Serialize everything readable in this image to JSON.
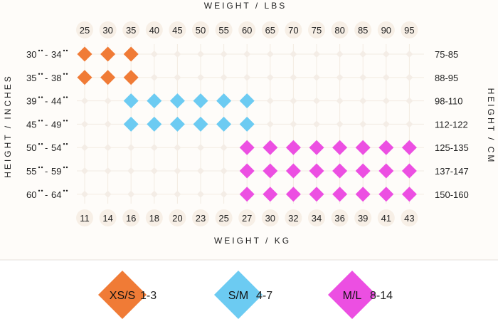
{
  "chart_data": {
    "type": "heatmap",
    "title": "",
    "top_axis_label": "WEIGHT / LBS",
    "bottom_axis_label": "WEIGHT / KG",
    "left_axis_label": "HEIGHT / INCHES",
    "right_axis_label": "HEIGHT / CM",
    "weight_lbs": [
      "25",
      "30",
      "35",
      "40",
      "45",
      "50",
      "55",
      "60",
      "65",
      "70",
      "75",
      "80",
      "85",
      "90",
      "95"
    ],
    "weight_kg": [
      "11",
      "14",
      "16",
      "18",
      "20",
      "23",
      "25",
      "27",
      "30",
      "32",
      "34",
      "36",
      "39",
      "41",
      "43"
    ],
    "height_inches": [
      {
        "from": "30",
        "to": "34"
      },
      {
        "from": "35",
        "to": "38"
      },
      {
        "from": "39",
        "to": "44"
      },
      {
        "from": "45",
        "to": "49"
      },
      {
        "from": "50",
        "to": "54"
      },
      {
        "from": "55",
        "to": "59"
      },
      {
        "from": "60",
        "to": "64"
      }
    ],
    "height_cm": [
      "75-85",
      "88-95",
      "98-110",
      "112-122",
      "125-135",
      "137-147",
      "150-160"
    ],
    "sizes": [
      {
        "key": "XS/S",
        "label": "XS/S",
        "range": "1-3",
        "color": "#f07b36"
      },
      {
        "key": "S/M",
        "label": "S/M",
        "range": "4-7",
        "color": "#6ccbf2"
      },
      {
        "key": "M/L",
        "label": "M/L",
        "range": "8-14",
        "color": "#ec4fe2"
      }
    ],
    "cells": [
      {
        "row": 0,
        "cols": [
          0,
          1,
          2
        ],
        "size": "XS/S"
      },
      {
        "row": 1,
        "cols": [
          0,
          1,
          2
        ],
        "size": "XS/S"
      },
      {
        "row": 2,
        "cols": [
          2,
          3,
          4,
          5,
          6,
          7
        ],
        "size": "S/M"
      },
      {
        "row": 3,
        "cols": [
          2,
          3,
          4,
          5,
          6,
          7
        ],
        "size": "S/M"
      },
      {
        "row": 4,
        "cols": [
          7,
          8,
          9,
          10,
          11,
          12,
          13,
          14
        ],
        "size": "M/L"
      },
      {
        "row": 5,
        "cols": [
          7,
          8,
          9,
          10,
          11,
          12,
          13,
          14
        ],
        "size": "M/L"
      },
      {
        "row": 6,
        "cols": [
          7,
          8,
          9,
          10,
          11,
          12,
          13,
          14
        ],
        "size": "M/L"
      }
    ],
    "grid": true,
    "legend_position": "bottom"
  },
  "colors": {
    "background": "#fefcf9",
    "grid_line": "#f3ebe2",
    "empty_marker": "#f4ede6",
    "tick_halo": "#f7efe6",
    "legend_band": "#ffffff",
    "separator": "#e6e1dc"
  }
}
